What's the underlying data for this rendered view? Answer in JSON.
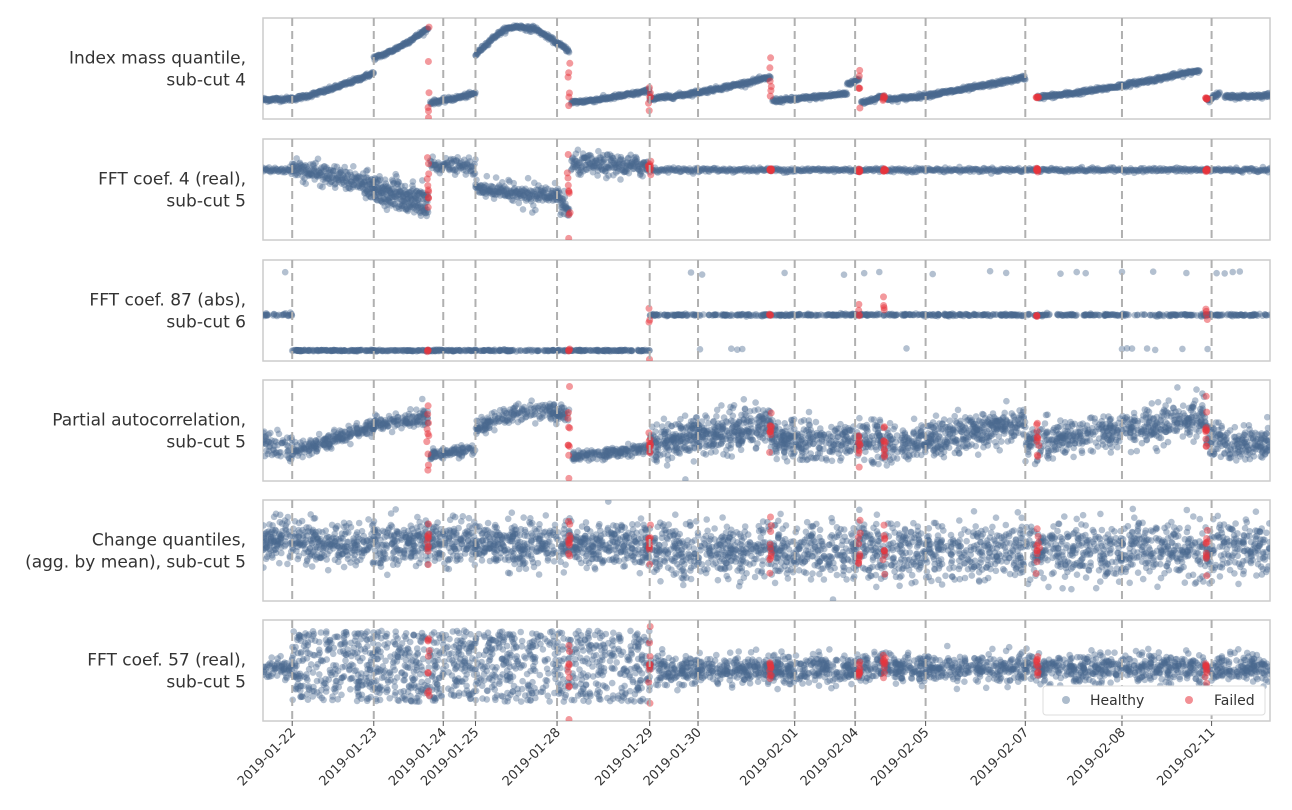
{
  "colors": {
    "healthy": "#4a6a8e",
    "failed": "#e8333c",
    "frame": "#cccccc",
    "separator": "#b0b0b0"
  },
  "chart_data": {
    "type": "scatter",
    "legend": {
      "entries": [
        "Healthy",
        "Failed"
      ],
      "placement": "lower-right of bottom panel"
    },
    "x_ticks": [
      "2019-01-22",
      "2019-01-23",
      "2019-01-24",
      "2019-01-25",
      "2019-01-28",
      "2019-01-29",
      "2019-01-30",
      "2019-02-01",
      "2019-02-04",
      "2019-02-05",
      "2019-02-07",
      "2019-02-08",
      "2019-02-11"
    ],
    "x_range": [
      0,
      1000
    ],
    "tick_positions": [
      29,
      110,
      179,
      211,
      292,
      384,
      432,
      528,
      588,
      658,
      757,
      853,
      942
    ],
    "segments": [
      [
        0,
        29
      ],
      [
        29,
        110
      ],
      [
        110,
        164
      ],
      [
        164,
        211
      ],
      [
        211,
        292
      ],
      [
        292,
        304
      ],
      [
        304,
        384
      ],
      [
        384,
        504
      ],
      [
        504,
        588
      ],
      [
        588,
        617
      ],
      [
        617,
        757
      ],
      [
        757,
        937
      ],
      [
        937,
        1000
      ]
    ],
    "failure_positions": [
      164,
      304,
      384,
      504,
      592,
      617,
      769,
      937
    ],
    "y_range": [
      0,
      1
    ],
    "panels": [
      {
        "label_lines": [
          "Index mass quantile,",
          "sub-cut 4"
        ],
        "kind": "trend",
        "segments_trend": [
          {
            "from": 0,
            "to": 29,
            "y0": 0.15,
            "y1": 0.16
          },
          {
            "from": 29,
            "to": 110,
            "y0": 0.16,
            "y1": 0.45
          },
          {
            "from": 110,
            "to": 164,
            "y0": 0.62,
            "y1": 0.95
          },
          {
            "from": 166,
            "to": 211,
            "y0": 0.12,
            "y1": 0.22
          },
          {
            "from": 211,
            "to": 304,
            "y0": 0.65,
            "y1": 0.7,
            "peak": 0.97
          },
          {
            "from": 306,
            "to": 384,
            "y0": 0.12,
            "y1": 0.25
          },
          {
            "from": 384,
            "to": 504,
            "y0": 0.16,
            "y1": 0.4
          },
          {
            "from": 506,
            "to": 580,
            "y0": 0.14,
            "y1": 0.22
          },
          {
            "from": 580,
            "to": 592,
            "y0": 0.33,
            "y1": 0.38
          },
          {
            "from": 594,
            "to": 617,
            "y0": 0.12,
            "y1": 0.2
          },
          {
            "from": 619,
            "to": 757,
            "y0": 0.15,
            "y1": 0.4
          },
          {
            "from": 769,
            "to": 930,
            "y0": 0.18,
            "y1": 0.48
          },
          {
            "from": 937,
            "to": 950,
            "y0": 0.15,
            "y1": 0.22
          },
          {
            "from": 955,
            "to": 1000,
            "y0": 0.18,
            "y1": 0.2
          }
        ]
      },
      {
        "label_lines": [
          "FFT coef. 4 (real),",
          "sub-cut 5"
        ],
        "kind": "mixed",
        "note": "declining noisy segments before 2019-01-29, flat after"
      },
      {
        "label_lines": [
          "FFT coef. 87 (abs),",
          "sub-cut 6"
        ],
        "kind": "levels",
        "note": "level 0.55 before 2019-01-22, 0.05 until 2019-01-29, 0.55 after with sparse outliers"
      },
      {
        "label_lines": [
          "Partial autocorrelation,",
          "sub-cut 5"
        ],
        "kind": "noisy-trend"
      },
      {
        "label_lines": [
          "Change quantiles,",
          "(agg. by mean), sub-cut 5"
        ],
        "kind": "noise-band"
      },
      {
        "label_lines": [
          "FFT coef. 57 (real),",
          "sub-cut 5"
        ],
        "kind": "wide-then-narrow"
      }
    ]
  }
}
